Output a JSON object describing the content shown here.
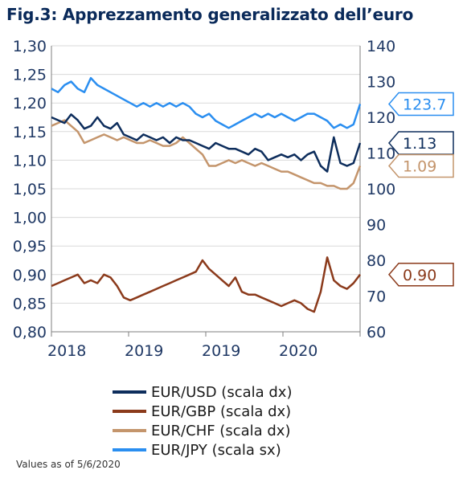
{
  "title": "Fig.3: Apprezzamento generalizzato dell’euro",
  "footnote": "Values as of 5/6/2020",
  "colors": {
    "usd": "#0d2d5c",
    "gbp": "#8b3a1b",
    "chf": "#c4956c",
    "jpy": "#2a8ef0",
    "grid": "#d9d9d9",
    "axis": "#7f7f7f",
    "tick_text": "#1f3864"
  },
  "chart_data": {
    "type": "line",
    "title": "Fig.3: Apprezzamento generalizzato dell’euro",
    "x_tick_labels": [
      "2018",
      "2019",
      "2019",
      "2020"
    ],
    "x_range": [
      2018.0,
      2020.35
    ],
    "left_axis": {
      "ticks": [
        "1,30",
        "1,25",
        "1,20",
        "1,15",
        "1,10",
        "1,05",
        "1,00",
        "0,95",
        "0,90",
        "0,85",
        "0,80"
      ],
      "ylim": [
        0.8,
        1.3
      ]
    },
    "right_axis": {
      "ticks": [
        "140",
        "130",
        "120",
        "110",
        "100",
        "90",
        "80",
        "70",
        "60"
      ],
      "ylim": [
        60,
        140
      ]
    },
    "grid": true,
    "legend_position": "bottom",
    "series": [
      {
        "name": "EUR/USD (scala dx)",
        "color_key": "usd",
        "axis": "left",
        "last_label": "1.13",
        "x": [
          2018.0,
          2018.05,
          2018.1,
          2018.15,
          2018.2,
          2018.25,
          2018.3,
          2018.35,
          2018.4,
          2018.45,
          2018.5,
          2018.55,
          2018.6,
          2018.65,
          2018.7,
          2018.75,
          2018.8,
          2018.85,
          2018.9,
          2018.95,
          2019.0,
          2019.05,
          2019.1,
          2019.15,
          2019.2,
          2019.25,
          2019.3,
          2019.35,
          2019.4,
          2019.45,
          2019.5,
          2019.55,
          2019.6,
          2019.65,
          2019.7,
          2019.75,
          2019.8,
          2019.85,
          2019.9,
          2019.95,
          2020.0,
          2020.05,
          2020.1,
          2020.15,
          2020.2,
          2020.25,
          2020.3,
          2020.35
        ],
        "values": [
          1.175,
          1.17,
          1.165,
          1.18,
          1.17,
          1.155,
          1.16,
          1.175,
          1.16,
          1.155,
          1.165,
          1.145,
          1.14,
          1.135,
          1.145,
          1.14,
          1.135,
          1.14,
          1.13,
          1.14,
          1.135,
          1.135,
          1.13,
          1.125,
          1.12,
          1.13,
          1.125,
          1.12,
          1.12,
          1.115,
          1.11,
          1.12,
          1.115,
          1.1,
          1.105,
          1.11,
          1.105,
          1.11,
          1.1,
          1.11,
          1.115,
          1.09,
          1.08,
          1.14,
          1.095,
          1.09,
          1.095,
          1.13
        ]
      },
      {
        "name": "EUR/GBP (scala dx)",
        "color_key": "gbp",
        "axis": "left",
        "last_label": "0.90",
        "x": [
          2018.0,
          2018.05,
          2018.1,
          2018.15,
          2018.2,
          2018.25,
          2018.3,
          2018.35,
          2018.4,
          2018.45,
          2018.5,
          2018.55,
          2018.6,
          2018.65,
          2018.7,
          2018.75,
          2018.8,
          2018.85,
          2018.9,
          2018.95,
          2019.0,
          2019.05,
          2019.1,
          2019.15,
          2019.2,
          2019.25,
          2019.3,
          2019.35,
          2019.4,
          2019.45,
          2019.5,
          2019.55,
          2019.6,
          2019.65,
          2019.7,
          2019.75,
          2019.8,
          2019.85,
          2019.9,
          2019.95,
          2020.0,
          2020.05,
          2020.1,
          2020.15,
          2020.2,
          2020.25,
          2020.3,
          2020.35
        ],
        "values": [
          0.88,
          0.885,
          0.89,
          0.895,
          0.9,
          0.885,
          0.89,
          0.885,
          0.9,
          0.895,
          0.88,
          0.86,
          0.855,
          0.86,
          0.865,
          0.87,
          0.875,
          0.88,
          0.885,
          0.89,
          0.895,
          0.9,
          0.905,
          0.925,
          0.91,
          0.9,
          0.89,
          0.88,
          0.895,
          0.87,
          0.865,
          0.865,
          0.86,
          0.855,
          0.85,
          0.845,
          0.85,
          0.855,
          0.85,
          0.84,
          0.835,
          0.87,
          0.93,
          0.89,
          0.88,
          0.875,
          0.885,
          0.9
        ]
      },
      {
        "name": "EUR/CHF (scala dx)",
        "color_key": "chf",
        "axis": "left",
        "last_label": "1.09",
        "x": [
          2018.0,
          2018.05,
          2018.1,
          2018.15,
          2018.2,
          2018.25,
          2018.3,
          2018.35,
          2018.4,
          2018.45,
          2018.5,
          2018.55,
          2018.6,
          2018.65,
          2018.7,
          2018.75,
          2018.8,
          2018.85,
          2018.9,
          2018.95,
          2019.0,
          2019.05,
          2019.1,
          2019.15,
          2019.2,
          2019.25,
          2019.3,
          2019.35,
          2019.4,
          2019.45,
          2019.5,
          2019.55,
          2019.6,
          2019.65,
          2019.7,
          2019.75,
          2019.8,
          2019.85,
          2019.9,
          2019.95,
          2020.0,
          2020.05,
          2020.1,
          2020.15,
          2020.2,
          2020.25,
          2020.3,
          2020.35
        ],
        "values": [
          1.16,
          1.165,
          1.17,
          1.16,
          1.15,
          1.13,
          1.135,
          1.14,
          1.145,
          1.14,
          1.135,
          1.14,
          1.135,
          1.13,
          1.13,
          1.135,
          1.13,
          1.125,
          1.125,
          1.13,
          1.14,
          1.13,
          1.12,
          1.11,
          1.09,
          1.09,
          1.095,
          1.1,
          1.095,
          1.1,
          1.095,
          1.09,
          1.095,
          1.09,
          1.085,
          1.08,
          1.08,
          1.075,
          1.07,
          1.065,
          1.06,
          1.06,
          1.055,
          1.055,
          1.05,
          1.05,
          1.06,
          1.09
        ]
      },
      {
        "name": "EUR/JPY (scala sx)",
        "color_key": "jpy",
        "axis": "right",
        "last_label": "123.7",
        "x": [
          2018.0,
          2018.05,
          2018.1,
          2018.15,
          2018.2,
          2018.25,
          2018.3,
          2018.35,
          2018.4,
          2018.45,
          2018.5,
          2018.55,
          2018.6,
          2018.65,
          2018.7,
          2018.75,
          2018.8,
          2018.85,
          2018.9,
          2018.95,
          2019.0,
          2019.05,
          2019.1,
          2019.15,
          2019.2,
          2019.25,
          2019.3,
          2019.35,
          2019.4,
          2019.45,
          2019.5,
          2019.55,
          2019.6,
          2019.65,
          2019.7,
          2019.75,
          2019.8,
          2019.85,
          2019.9,
          2019.95,
          2020.0,
          2020.05,
          2020.1,
          2020.15,
          2020.2,
          2020.25,
          2020.3,
          2020.35
        ],
        "values": [
          128,
          127,
          129,
          130,
          128,
          127,
          131,
          129,
          128,
          127,
          126,
          125,
          124,
          123,
          124,
          123,
          124,
          123,
          124,
          123,
          124,
          123,
          121,
          120,
          121,
          119,
          118,
          117,
          118,
          119,
          120,
          121,
          120,
          121,
          120,
          121,
          120,
          119,
          120,
          121,
          121,
          120,
          119,
          117,
          118,
          117,
          118,
          123.7
        ]
      }
    ]
  }
}
